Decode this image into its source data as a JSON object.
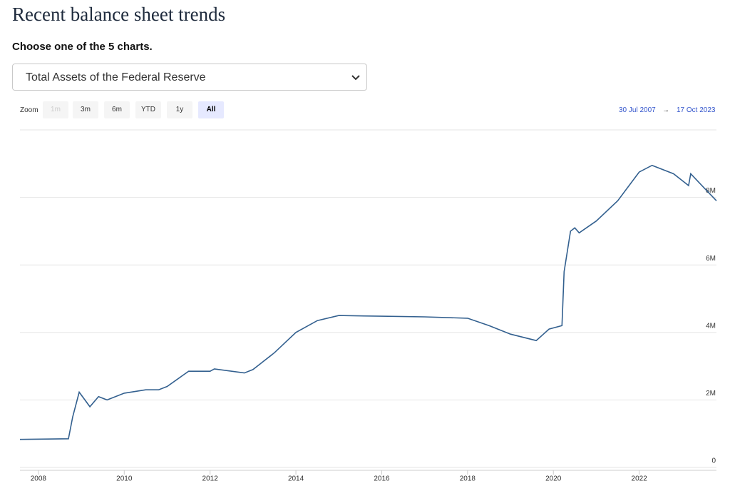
{
  "header": {
    "title": "Recent balance sheet trends",
    "prompt": "Choose one of the 5 charts."
  },
  "dropdown": {
    "selected": "Total Assets of the Federal Reserve"
  },
  "zoom": {
    "label": "Zoom",
    "buttons": [
      "1m",
      "3m",
      "6m",
      "YTD",
      "1y",
      "All"
    ],
    "active": "All",
    "disabled": "1m"
  },
  "range": {
    "from": "30 Jul 2007",
    "separator": "→",
    "to": "17 Oct 2023"
  },
  "chart_data": {
    "type": "line",
    "color": "#33608f",
    "grid": true,
    "x": [
      2007.57,
      2008.7,
      2008.8,
      2008.95,
      2009.2,
      2009.4,
      2009.6,
      2010.0,
      2010.5,
      2010.8,
      2011.0,
      2011.5,
      2012.0,
      2012.1,
      2012.8,
      2013.0,
      2013.5,
      2014.0,
      2014.5,
      2015.0,
      2016.0,
      2017.0,
      2018.0,
      2018.5,
      2019.0,
      2019.6,
      2019.9,
      2020.2,
      2020.25,
      2020.4,
      2020.5,
      2020.6,
      2021.0,
      2021.5,
      2022.0,
      2022.3,
      2022.8,
      2023.15,
      2023.2,
      2023.5,
      2023.8
    ],
    "values": [
      830000,
      850000,
      1500000,
      2230000,
      1800000,
      2100000,
      2000000,
      2200000,
      2300000,
      2300000,
      2400000,
      2850000,
      2850000,
      2920000,
      2800000,
      2900000,
      3400000,
      4000000,
      4350000,
      4500000,
      4480000,
      4460000,
      4420000,
      4200000,
      3950000,
      3760000,
      4100000,
      4200000,
      5800000,
      7000000,
      7100000,
      6950000,
      7300000,
      7900000,
      8750000,
      8950000,
      8700000,
      8350000,
      8700000,
      8300000,
      7900000
    ],
    "xlim": [
      2007.57,
      2023.8
    ],
    "xticks": [
      2008,
      2010,
      2012,
      2014,
      2016,
      2018,
      2020,
      2022
    ],
    "ylim": [
      0,
      10000000
    ],
    "yticks": [
      0,
      {
        "value": 2000000,
        "label": "2M"
      },
      {
        "value": 4000000,
        "label": "4M"
      },
      {
        "value": 6000000,
        "label": "6M"
      },
      {
        "value": 8000000,
        "label": "8M"
      }
    ]
  }
}
